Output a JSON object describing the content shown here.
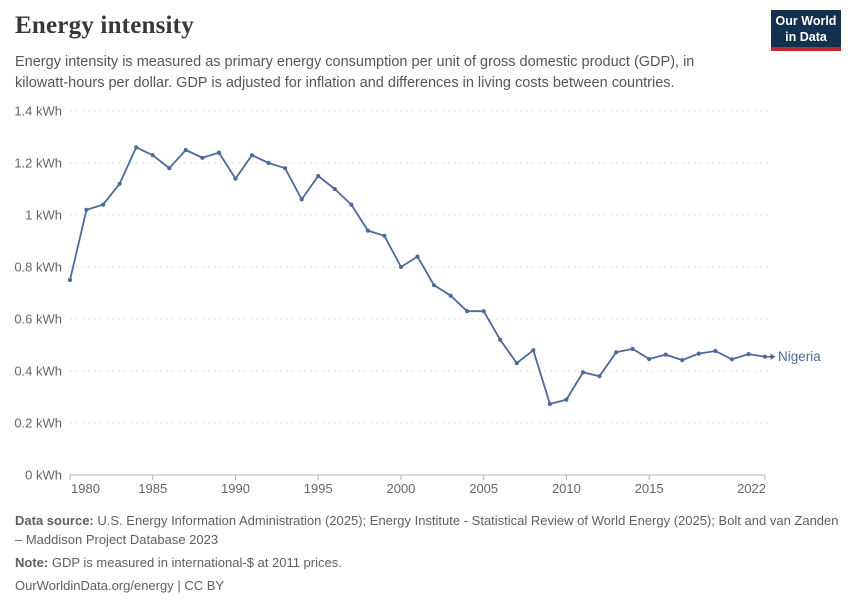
{
  "header": {
    "title": "Energy intensity",
    "subtitle": "Energy intensity is measured as primary energy consumption per unit of gross domestic product (GDP), in kilowatt-hours per dollar. GDP is adjusted for inflation and differences in living costs between countries.",
    "logo": {
      "line1": "Our World",
      "line2": "in Data",
      "bg_color": "#14304f",
      "accent_color": "#c2282d"
    }
  },
  "chart_data": {
    "type": "line",
    "title": "Energy intensity",
    "xlabel": "",
    "ylabel": "",
    "x": [
      1980,
      1981,
      1982,
      1983,
      1984,
      1985,
      1986,
      1987,
      1988,
      1989,
      1990,
      1991,
      1992,
      1993,
      1994,
      1995,
      1996,
      1997,
      1998,
      1999,
      2000,
      2001,
      2002,
      2003,
      2004,
      2005,
      2006,
      2007,
      2008,
      2009,
      2010,
      2011,
      2012,
      2013,
      2014,
      2015,
      2016,
      2017,
      2018,
      2019,
      2020,
      2021,
      2022
    ],
    "series": [
      {
        "name": "Nigeria",
        "color": "#4c6a9c",
        "values": [
          0.75,
          1.02,
          1.04,
          1.12,
          1.26,
          1.23,
          1.18,
          1.25,
          1.22,
          1.24,
          1.14,
          1.23,
          1.2,
          1.18,
          1.06,
          1.15,
          1.1,
          1.04,
          0.94,
          0.92,
          0.8,
          0.84,
          0.73,
          0.69,
          0.63,
          0.63,
          0.52,
          0.43,
          0.48,
          0.273,
          0.29,
          0.395,
          0.38,
          0.472,
          0.485,
          0.446,
          0.463,
          0.442,
          0.467,
          0.477,
          0.445,
          0.465,
          0.455
        ]
      }
    ],
    "xlim": [
      1980,
      2022
    ],
    "ylim": [
      0,
      1.4
    ],
    "x_tick_values": [
      1980,
      1985,
      1990,
      1995,
      2000,
      2005,
      2010,
      2015,
      2022
    ],
    "x_tick_labels": [
      "1980",
      "1985",
      "1990",
      "1995",
      "2000",
      "2005",
      "2010",
      "2015",
      "2022"
    ],
    "y_tick_values": [
      0,
      0.2,
      0.4,
      0.6,
      0.8,
      1,
      1.2,
      1.4
    ],
    "y_tick_labels": [
      "0 kWh",
      "0.2 kWh",
      "0.4 kWh",
      "0.6 kWh",
      "0.8 kWh",
      "1 kWh",
      "1.2 kWh",
      "1.4 kWh"
    ],
    "grid": "horizontal-dashed",
    "legend_position": "end-of-line",
    "end_label": "Nigeria",
    "colors": {
      "line": "#4c6a9c",
      "grid": "#dcdcdc",
      "axis": "#b0b0b0",
      "tick_text": "#666666"
    }
  },
  "footer": {
    "data_source_label": "Data source:",
    "data_source": "U.S. Energy Information Administration (2025); Energy Institute - Statistical Review of World Energy (2025); Bolt and van Zanden – Maddison Project Database 2023",
    "note_label": "Note:",
    "note": "GDP is measured in international-$ at 2011 prices.",
    "license": "OurWorldinData.org/energy | CC BY"
  }
}
